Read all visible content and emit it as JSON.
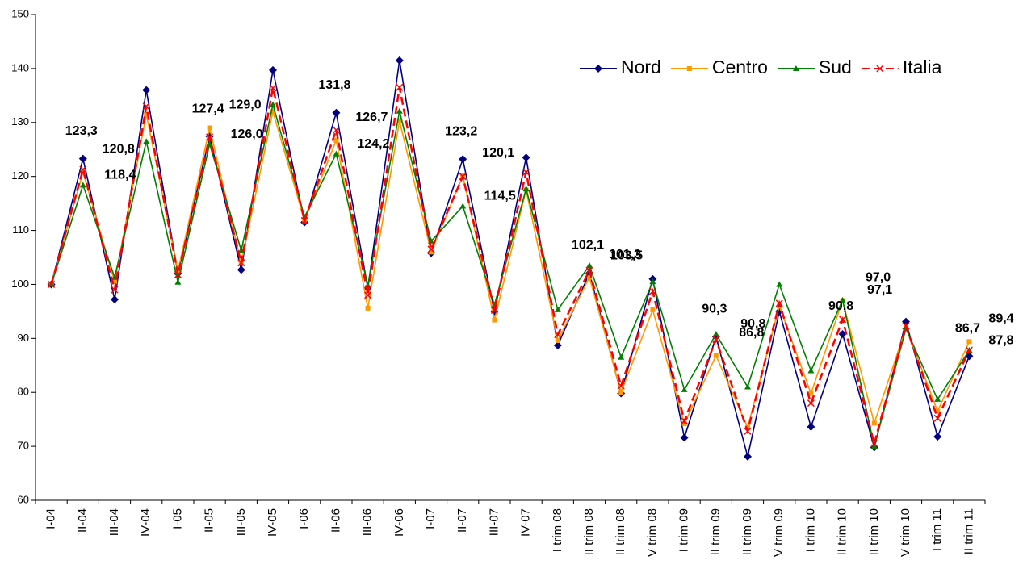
{
  "chart_data": {
    "type": "line",
    "categories": [
      "I-04",
      "II-04",
      "III-04",
      "IV-04",
      "I-05",
      "II-05",
      "III-05",
      "IV-05",
      "I-06",
      "II-06",
      "III-06",
      "IV-06",
      "I-07",
      "II-07",
      "III-07",
      "IV-07",
      "I trim 08",
      "II trim 08",
      "II trim 08",
      "V trim 08",
      "I trim 09",
      "II trim 09",
      "II trim 09",
      "V trim 09",
      "I trim 10",
      "II trim 10",
      "II trim 10",
      "V trim 10",
      "I trim 11",
      "II trim 11"
    ],
    "series": [
      {
        "name": "Nord",
        "color": "#000080",
        "label_color": "#1a1a80",
        "marker": "diamond",
        "line_style": "solid",
        "values": [
          100,
          123.3,
          97.2,
          136,
          102,
          127.4,
          102.7,
          139.7,
          111.5,
          131.8,
          99.3,
          141.5,
          105.8,
          123.2,
          95,
          123.5,
          88.7,
          102.1,
          79.8,
          101,
          71.6,
          90.3,
          68.1,
          95,
          73.6,
          90.8,
          69.8,
          93.1,
          71.8,
          86.7
        ],
        "value_labels": [
          null,
          "123,3",
          null,
          null,
          null,
          "127,4",
          null,
          null,
          null,
          "131,8",
          null,
          null,
          null,
          "123,2",
          null,
          null,
          null,
          "102,1",
          null,
          null,
          null,
          "90,3",
          null,
          null,
          null,
          "90,8",
          null,
          null,
          null,
          "86,7"
        ]
      },
      {
        "name": "Centro",
        "color": "#ff9900",
        "label_color": "#ffc000",
        "marker": "square",
        "line_style": "solid",
        "values": [
          100,
          120.8,
          100.5,
          131.5,
          102.5,
          129.0,
          104,
          132,
          111.8,
          126.7,
          95.6,
          130.3,
          106,
          120.1,
          93.4,
          117.5,
          89.6,
          101.3,
          80,
          95.3,
          74.2,
          86.8,
          73.5,
          96,
          79.8,
          97.0,
          74.3,
          92,
          76.5,
          89.4
        ],
        "value_labels": [
          null,
          "120,8",
          null,
          null,
          null,
          "129,0",
          null,
          null,
          null,
          "126,7",
          null,
          null,
          null,
          "120,1",
          null,
          null,
          null,
          "101,3",
          null,
          null,
          null,
          "86,8",
          null,
          null,
          null,
          "97,0",
          null,
          null,
          null,
          "89,4"
        ]
      },
      {
        "name": "Sud",
        "color": "#008000",
        "label_color": "#008000",
        "marker": "triangle",
        "line_style": "solid",
        "values": [
          100,
          118.4,
          101.3,
          126.5,
          100.4,
          126.0,
          106.3,
          133.3,
          112.5,
          124.2,
          99.8,
          132.1,
          108,
          114.5,
          96.2,
          117.7,
          95.3,
          103.5,
          86.5,
          100.5,
          80.5,
          90.8,
          81,
          100,
          84,
          97.1,
          70,
          91.8,
          78.7,
          87.8
        ],
        "value_labels": [
          null,
          "118,4",
          null,
          null,
          null,
          "126,0",
          null,
          null,
          null,
          "124,2",
          null,
          null,
          null,
          "114,5",
          null,
          null,
          null,
          "103,5",
          null,
          null,
          null,
          "90,8",
          null,
          null,
          null,
          "97,1",
          null,
          null,
          null,
          "87,8"
        ]
      },
      {
        "name": "Italia",
        "color": "#ff0000",
        "marker": "x",
        "line_style": "dashed",
        "values": [
          100,
          121.3,
          99,
          133,
          101.8,
          127.3,
          104,
          136.4,
          111.8,
          128.6,
          98,
          136.5,
          106.5,
          120,
          95.2,
          120.8,
          90.7,
          102.6,
          81.2,
          98.7,
          74.7,
          89.8,
          72.8,
          96.5,
          78,
          93.5,
          70.5,
          92.3,
          75.2,
          87.8
        ]
      }
    ],
    "ylim": [
      60,
      150
    ],
    "yticks": [
      60,
      70,
      80,
      90,
      100,
      110,
      120,
      130,
      140,
      150
    ],
    "grid": false,
    "legend": "upper right"
  }
}
